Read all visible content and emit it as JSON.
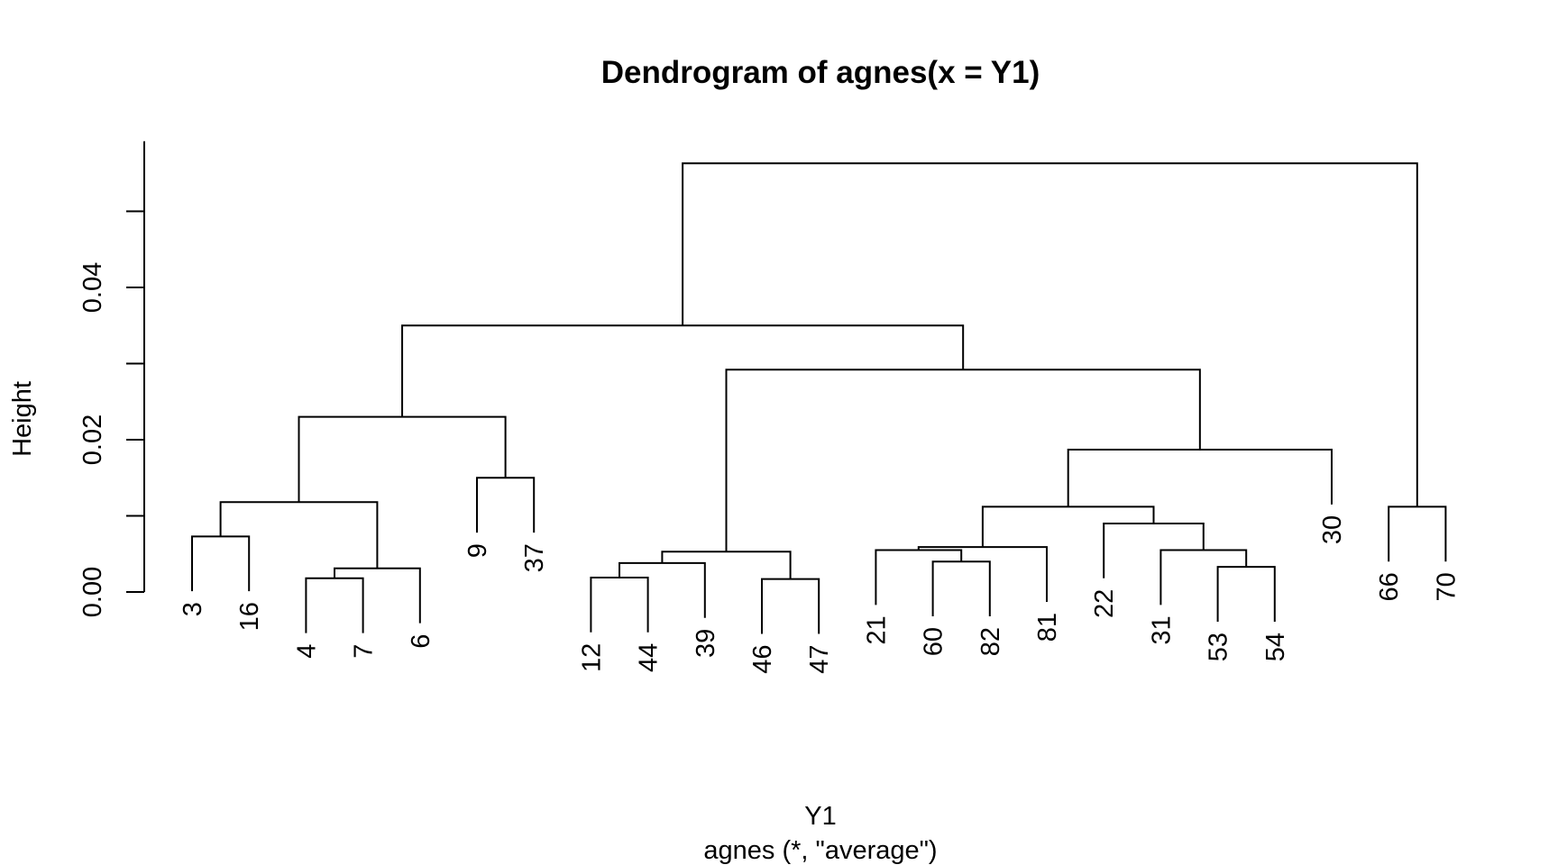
{
  "chart_data": {
    "type": "dendrogram",
    "title": "Dendrogram of  agnes(x = Y1)",
    "xlabel": "Y1",
    "sublabel": "agnes (*, \"average\")",
    "ylabel": "Height",
    "ylim": [
      0,
      0.058
    ],
    "yticks": [
      0.0,
      0.01,
      0.02,
      0.03,
      0.04,
      0.05
    ],
    "ytick_labels": [
      "0.00",
      "",
      "0.02",
      "",
      "0.04",
      ""
    ],
    "leaves": [
      "3",
      "16",
      "4",
      "7",
      "6",
      "9",
      "37",
      "12",
      "44",
      "39",
      "46",
      "47",
      "21",
      "60",
      "82",
      "81",
      "22",
      "31",
      "53",
      "54",
      "30",
      "66",
      "70"
    ],
    "merges": [
      {
        "id": "m1",
        "left": "4",
        "right": "7",
        "height": 0.0018
      },
      {
        "id": "m2",
        "left": "m1",
        "right": "6",
        "height": 0.0031
      },
      {
        "id": "m3",
        "left": "3",
        "right": "16",
        "height": 0.0073
      },
      {
        "id": "m4",
        "left": "m3",
        "right": "m2",
        "height": 0.0118
      },
      {
        "id": "m5",
        "left": "9",
        "right": "37",
        "height": 0.015
      },
      {
        "id": "m6",
        "left": "m4",
        "right": "m5",
        "height": 0.023
      },
      {
        "id": "m7",
        "left": "12",
        "right": "44",
        "height": 0.0019
      },
      {
        "id": "m8",
        "left": "m7",
        "right": "39",
        "height": 0.0038
      },
      {
        "id": "m9",
        "left": "46",
        "right": "47",
        "height": 0.0017
      },
      {
        "id": "m10",
        "left": "m8",
        "right": "m9",
        "height": 0.0053
      },
      {
        "id": "m11",
        "left": "60",
        "right": "82",
        "height": 0.004
      },
      {
        "id": "m12",
        "left": "21",
        "right": "m11",
        "height": 0.0055
      },
      {
        "id": "m13",
        "left": "m12",
        "right": "81",
        "height": 0.0059
      },
      {
        "id": "m14",
        "left": "53",
        "right": "54",
        "height": 0.0033
      },
      {
        "id": "m15",
        "left": "31",
        "right": "m14",
        "height": 0.0055
      },
      {
        "id": "m16",
        "left": "22",
        "right": "m15",
        "height": 0.009
      },
      {
        "id": "m17",
        "left": "m13",
        "right": "m16",
        "height": 0.0112
      },
      {
        "id": "m18",
        "left": "m17",
        "right": "30",
        "height": 0.0187
      },
      {
        "id": "m19",
        "left": "m10",
        "right": "m18",
        "height": 0.0292
      },
      {
        "id": "m20",
        "left": "m6",
        "right": "m19",
        "height": 0.035
      },
      {
        "id": "m21",
        "left": "66",
        "right": "70",
        "height": 0.0112
      },
      {
        "id": "m22",
        "left": "m20",
        "right": "m21",
        "height": 0.0563
      }
    ]
  }
}
